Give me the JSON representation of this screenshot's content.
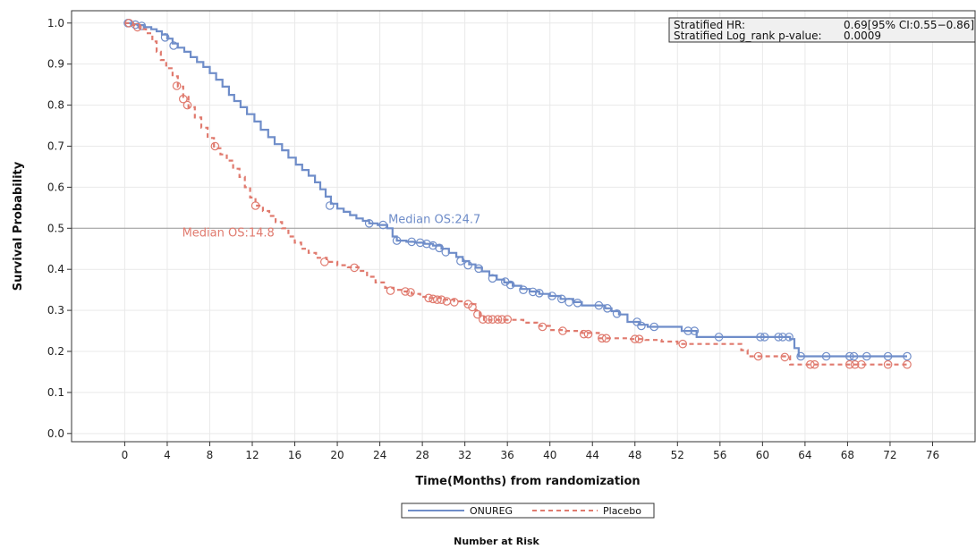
{
  "chart_data": {
    "type": "line",
    "xlabel": "Time(Months) from randomization",
    "ylabel": "Survival Probability",
    "xlim": [
      -5,
      80
    ],
    "ylim": [
      -0.02,
      1.03
    ],
    "xticks": [
      0,
      4,
      8,
      12,
      16,
      20,
      24,
      28,
      32,
      36,
      40,
      44,
      48,
      52,
      56,
      60,
      64,
      68,
      72,
      76
    ],
    "yticks": [
      0.0,
      0.1,
      0.2,
      0.3,
      0.4,
      0.5,
      0.6,
      0.7,
      0.8,
      0.9,
      1.0
    ],
    "ytick_labels": [
      "0.0",
      "0.1",
      "0.2",
      "0.3",
      "0.4",
      "0.5",
      "0.6",
      "0.7",
      "0.8",
      "0.9",
      "1.0"
    ],
    "grid": true,
    "reference_line_y": 0.5,
    "stats_box": {
      "row1_label": "Stratified HR:",
      "row1_value": "0.69[95% CI:0.55−0.86]",
      "row2_label": "Stratified Log_rank p-value:",
      "row2_value": "0.0009"
    },
    "legend_position": "bottom",
    "risk_table_title": "Number at Risk",
    "series": [
      {
        "name": "ONUREG",
        "color": "#6f8dc9",
        "dash": "solid",
        "median_label": "Median OS:24.7",
        "median_label_at": [
          24.8,
          0.513
        ],
        "points": [
          [
            0,
            1.0
          ],
          [
            0.6,
            0.997
          ],
          [
            1.2,
            0.995
          ],
          [
            1.8,
            0.99
          ],
          [
            2.5,
            0.985
          ],
          [
            3.0,
            0.98
          ],
          [
            3.5,
            0.972
          ],
          [
            4.0,
            0.962
          ],
          [
            4.5,
            0.95
          ],
          [
            5.0,
            0.94
          ],
          [
            5.6,
            0.93
          ],
          [
            6.2,
            0.917
          ],
          [
            6.8,
            0.905
          ],
          [
            7.4,
            0.893
          ],
          [
            8.0,
            0.878
          ],
          [
            8.6,
            0.862
          ],
          [
            9.2,
            0.845
          ],
          [
            9.8,
            0.825
          ],
          [
            10.3,
            0.81
          ],
          [
            10.9,
            0.795
          ],
          [
            11.5,
            0.778
          ],
          [
            12.2,
            0.76
          ],
          [
            12.8,
            0.74
          ],
          [
            13.5,
            0.722
          ],
          [
            14.1,
            0.705
          ],
          [
            14.8,
            0.69
          ],
          [
            15.4,
            0.672
          ],
          [
            16.1,
            0.655
          ],
          [
            16.7,
            0.642
          ],
          [
            17.3,
            0.628
          ],
          [
            17.9,
            0.612
          ],
          [
            18.4,
            0.595
          ],
          [
            18.9,
            0.577
          ],
          [
            19.4,
            0.56
          ],
          [
            20.0,
            0.548
          ],
          [
            20.6,
            0.54
          ],
          [
            21.2,
            0.532
          ],
          [
            21.8,
            0.524
          ],
          [
            22.4,
            0.518
          ],
          [
            23.0,
            0.512
          ],
          [
            23.8,
            0.508
          ],
          [
            24.7,
            0.5
          ],
          [
            25.2,
            0.48
          ],
          [
            25.6,
            0.47
          ],
          [
            26.5,
            0.467
          ],
          [
            27.3,
            0.465
          ],
          [
            28.2,
            0.462
          ],
          [
            29.0,
            0.458
          ],
          [
            29.8,
            0.45
          ],
          [
            30.5,
            0.44
          ],
          [
            31.2,
            0.43
          ],
          [
            31.8,
            0.42
          ],
          [
            32.4,
            0.412
          ],
          [
            33.0,
            0.404
          ],
          [
            33.6,
            0.395
          ],
          [
            34.3,
            0.385
          ],
          [
            35.0,
            0.375
          ],
          [
            35.7,
            0.368
          ],
          [
            36.5,
            0.36
          ],
          [
            37.3,
            0.352
          ],
          [
            38.1,
            0.346
          ],
          [
            39.0,
            0.34
          ],
          [
            40.0,
            0.335
          ],
          [
            41.0,
            0.328
          ],
          [
            42.2,
            0.32
          ],
          [
            43.0,
            0.312
          ],
          [
            44.6,
            0.312
          ],
          [
            45.2,
            0.305
          ],
          [
            45.8,
            0.298
          ],
          [
            46.5,
            0.29
          ],
          [
            47.3,
            0.272
          ],
          [
            48.4,
            0.265
          ],
          [
            49.2,
            0.26
          ],
          [
            52.4,
            0.25
          ],
          [
            53.8,
            0.235
          ],
          [
            61.5,
            0.235
          ],
          [
            62.6,
            0.23
          ],
          [
            63.0,
            0.208
          ],
          [
            63.4,
            0.188
          ],
          [
            73.6,
            0.188
          ]
        ],
        "censored": [
          [
            0.3,
            1.0
          ],
          [
            1.0,
            0.996
          ],
          [
            1.6,
            0.993
          ],
          [
            3.8,
            0.965
          ],
          [
            4.6,
            0.945
          ],
          [
            19.3,
            0.555
          ],
          [
            23.0,
            0.512
          ],
          [
            24.3,
            0.508
          ],
          [
            25.6,
            0.47
          ],
          [
            27.0,
            0.467
          ],
          [
            27.8,
            0.465
          ],
          [
            28.4,
            0.462
          ],
          [
            29.0,
            0.458
          ],
          [
            29.6,
            0.452
          ],
          [
            30.2,
            0.442
          ],
          [
            31.6,
            0.42
          ],
          [
            32.3,
            0.41
          ],
          [
            33.3,
            0.402
          ],
          [
            34.6,
            0.378
          ],
          [
            35.8,
            0.37
          ],
          [
            36.3,
            0.362
          ],
          [
            37.5,
            0.35
          ],
          [
            38.4,
            0.345
          ],
          [
            39.0,
            0.342
          ],
          [
            40.2,
            0.335
          ],
          [
            41.1,
            0.328
          ],
          [
            41.8,
            0.32
          ],
          [
            42.6,
            0.318
          ],
          [
            44.6,
            0.312
          ],
          [
            45.4,
            0.305
          ],
          [
            46.3,
            0.292
          ],
          [
            48.2,
            0.272
          ],
          [
            48.6,
            0.262
          ],
          [
            49.8,
            0.26
          ],
          [
            53.0,
            0.25
          ],
          [
            53.6,
            0.25
          ],
          [
            55.9,
            0.235
          ],
          [
            59.8,
            0.235
          ],
          [
            60.2,
            0.235
          ],
          [
            61.5,
            0.235
          ],
          [
            61.9,
            0.235
          ],
          [
            62.5,
            0.235
          ],
          [
            63.6,
            0.188
          ],
          [
            66.0,
            0.188
          ],
          [
            68.2,
            0.188
          ],
          [
            68.6,
            0.188
          ],
          [
            69.8,
            0.188
          ],
          [
            71.8,
            0.188
          ],
          [
            73.6,
            0.188
          ]
        ]
      },
      {
        "name": "Placebo",
        "color": "#e07a6e",
        "dash": "dashed",
        "median_label": "Median OS:14.8",
        "median_label_at": [
          5.4,
          0.48
        ],
        "points": [
          [
            0,
            1.0
          ],
          [
            0.8,
            0.995
          ],
          [
            1.4,
            0.985
          ],
          [
            2.0,
            0.975
          ],
          [
            2.6,
            0.955
          ],
          [
            3.0,
            0.93
          ],
          [
            3.4,
            0.91
          ],
          [
            3.9,
            0.89
          ],
          [
            4.5,
            0.87
          ],
          [
            5.0,
            0.845
          ],
          [
            5.5,
            0.82
          ],
          [
            6.0,
            0.795
          ],
          [
            6.6,
            0.77
          ],
          [
            7.2,
            0.745
          ],
          [
            7.8,
            0.72
          ],
          [
            8.4,
            0.695
          ],
          [
            9.0,
            0.68
          ],
          [
            9.6,
            0.665
          ],
          [
            10.2,
            0.645
          ],
          [
            10.8,
            0.625
          ],
          [
            11.3,
            0.6
          ],
          [
            11.8,
            0.575
          ],
          [
            12.3,
            0.555
          ],
          [
            13.0,
            0.542
          ],
          [
            13.6,
            0.53
          ],
          [
            14.2,
            0.515
          ],
          [
            14.8,
            0.5
          ],
          [
            15.4,
            0.48
          ],
          [
            16.0,
            0.465
          ],
          [
            16.6,
            0.45
          ],
          [
            17.3,
            0.44
          ],
          [
            18.0,
            0.428
          ],
          [
            19.0,
            0.418
          ],
          [
            20.0,
            0.41
          ],
          [
            21.0,
            0.405
          ],
          [
            22.0,
            0.396
          ],
          [
            22.8,
            0.382
          ],
          [
            23.6,
            0.368
          ],
          [
            24.5,
            0.355
          ],
          [
            25.3,
            0.35
          ],
          [
            26.2,
            0.346
          ],
          [
            27.0,
            0.34
          ],
          [
            27.8,
            0.333
          ],
          [
            28.6,
            0.33
          ],
          [
            30.0,
            0.326
          ],
          [
            31.0,
            0.322
          ],
          [
            32.0,
            0.315
          ],
          [
            33.0,
            0.3
          ],
          [
            33.4,
            0.287
          ],
          [
            33.8,
            0.277
          ],
          [
            36.2,
            0.277
          ],
          [
            37.5,
            0.27
          ],
          [
            38.8,
            0.262
          ],
          [
            40.0,
            0.252
          ],
          [
            41.5,
            0.25
          ],
          [
            43.0,
            0.245
          ],
          [
            44.6,
            0.232
          ],
          [
            46.0,
            0.232
          ],
          [
            47.5,
            0.23
          ],
          [
            49.0,
            0.228
          ],
          [
            50.5,
            0.224
          ],
          [
            52.0,
            0.218
          ],
          [
            58.0,
            0.203
          ],
          [
            58.6,
            0.188
          ],
          [
            61.5,
            0.188
          ],
          [
            62.6,
            0.168
          ],
          [
            73.6,
            0.168
          ]
        ],
        "censored": [
          [
            0.4,
            1.0
          ],
          [
            1.2,
            0.99
          ],
          [
            4.9,
            0.847
          ],
          [
            5.5,
            0.815
          ],
          [
            5.9,
            0.8
          ],
          [
            8.5,
            0.7
          ],
          [
            12.3,
            0.555
          ],
          [
            18.8,
            0.418
          ],
          [
            21.6,
            0.404
          ],
          [
            25.0,
            0.348
          ],
          [
            26.4,
            0.346
          ],
          [
            26.9,
            0.344
          ],
          [
            28.6,
            0.33
          ],
          [
            29.0,
            0.328
          ],
          [
            29.4,
            0.326
          ],
          [
            29.8,
            0.326
          ],
          [
            30.3,
            0.322
          ],
          [
            31.0,
            0.32
          ],
          [
            32.3,
            0.315
          ],
          [
            32.7,
            0.308
          ],
          [
            33.2,
            0.29
          ],
          [
            33.7,
            0.278
          ],
          [
            34.2,
            0.278
          ],
          [
            34.6,
            0.278
          ],
          [
            35.1,
            0.278
          ],
          [
            35.5,
            0.278
          ],
          [
            36.0,
            0.278
          ],
          [
            39.3,
            0.26
          ],
          [
            41.2,
            0.25
          ],
          [
            43.2,
            0.242
          ],
          [
            43.6,
            0.242
          ],
          [
            44.9,
            0.232
          ],
          [
            45.3,
            0.232
          ],
          [
            48.0,
            0.23
          ],
          [
            48.4,
            0.23
          ],
          [
            52.5,
            0.218
          ],
          [
            59.6,
            0.188
          ],
          [
            62.1,
            0.186
          ],
          [
            64.5,
            0.168
          ],
          [
            64.9,
            0.168
          ],
          [
            68.2,
            0.168
          ],
          [
            68.7,
            0.168
          ],
          [
            69.3,
            0.168
          ],
          [
            71.8,
            0.168
          ],
          [
            73.6,
            0.168
          ]
        ]
      }
    ]
  }
}
